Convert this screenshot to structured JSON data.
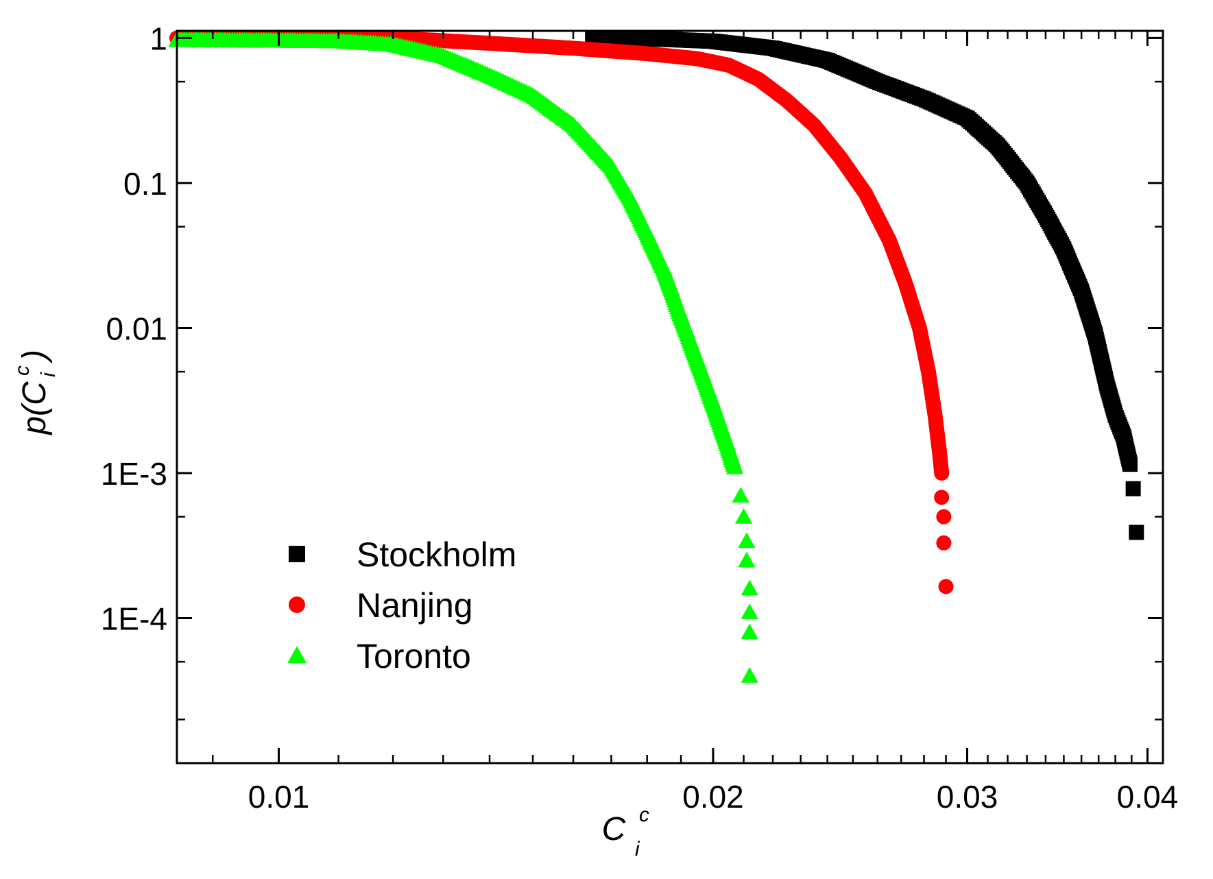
{
  "colors": {
    "background": "#ffffff",
    "axis": "#000000",
    "Stockholm": "#000000",
    "Nanjing": "#ff0000",
    "Toronto": "#00ff00"
  },
  "chart_data": {
    "type": "scatter",
    "xscale": "log",
    "yscale": "log",
    "xlim": [
      0.0085,
      0.041
    ],
    "ylim": [
      1e-05,
      1.12
    ],
    "xlabel": {
      "base": "C",
      "sup": "c",
      "sub": "i"
    },
    "ylabel": {
      "prefix": "p(",
      "base": "C",
      "sup": "c",
      "sub": "i",
      "suffix": ")"
    },
    "xticks": [
      {
        "value": 0.01,
        "label": "0.01"
      },
      {
        "value": 0.02,
        "label": "0.02"
      },
      {
        "value": 0.03,
        "label": "0.03"
      },
      {
        "value": 0.04,
        "label": "0.04"
      }
    ],
    "xminor": [
      0.009,
      0.011,
      0.012,
      0.013,
      0.014,
      0.015,
      0.016,
      0.017,
      0.018,
      0.019,
      0.021,
      0.022,
      0.023,
      0.024,
      0.025,
      0.026,
      0.027,
      0.028,
      0.029,
      0.031,
      0.032,
      0.033,
      0.034,
      0.035,
      0.036,
      0.037,
      0.038,
      0.039
    ],
    "yticks": [
      {
        "value": 1,
        "label": "1"
      },
      {
        "value": 0.1,
        "label": "0.1"
      },
      {
        "value": 0.01,
        "label": "0.01"
      },
      {
        "value": 0.001,
        "label": "1E-3"
      },
      {
        "value": 0.0001,
        "label": "1E-4"
      }
    ],
    "yminor": [
      0.5,
      0.05,
      0.005,
      0.0005,
      5e-05,
      2e-05
    ],
    "legend": {
      "position": "lower-left"
    },
    "series": [
      {
        "name": "Stockholm",
        "marker": "square",
        "color": "#000000",
        "points": [
          [
            0.0165,
            1.0
          ],
          [
            0.0185,
            0.98
          ],
          [
            0.02,
            0.95
          ],
          [
            0.022,
            0.85
          ],
          [
            0.024,
            0.7
          ],
          [
            0.026,
            0.5
          ],
          [
            0.028,
            0.38
          ],
          [
            0.03,
            0.28
          ],
          [
            0.0315,
            0.18
          ],
          [
            0.033,
            0.1
          ],
          [
            0.034,
            0.06
          ],
          [
            0.035,
            0.035
          ],
          [
            0.036,
            0.018
          ],
          [
            0.0368,
            0.009
          ],
          [
            0.0375,
            0.004
          ],
          [
            0.038,
            0.0025
          ],
          [
            0.0385,
            0.0018
          ],
          [
            0.0386,
            0.0016
          ],
          [
            0.0389,
            0.00115
          ],
          [
            0.0391,
            0.00078
          ],
          [
            0.0393,
            0.00039
          ]
        ]
      },
      {
        "name": "Nanjing",
        "marker": "circle",
        "color": "#ff0000",
        "points": [
          [
            0.0085,
            1.0
          ],
          [
            0.012,
            1.0
          ],
          [
            0.014,
            0.92
          ],
          [
            0.016,
            0.85
          ],
          [
            0.018,
            0.78
          ],
          [
            0.0195,
            0.72
          ],
          [
            0.0205,
            0.65
          ],
          [
            0.0215,
            0.52
          ],
          [
            0.0225,
            0.37
          ],
          [
            0.0235,
            0.25
          ],
          [
            0.0245,
            0.15
          ],
          [
            0.0255,
            0.085
          ],
          [
            0.0265,
            0.04
          ],
          [
            0.0272,
            0.02
          ],
          [
            0.0278,
            0.01
          ],
          [
            0.0282,
            0.005
          ],
          [
            0.0285,
            0.0025
          ],
          [
            0.0287,
            0.0014
          ],
          [
            0.0288,
            0.001
          ],
          [
            0.0288,
            0.00068
          ],
          [
            0.0289,
            0.0005
          ],
          [
            0.0289,
            0.00033
          ],
          [
            0.029,
            0.000165
          ]
        ]
      },
      {
        "name": "Toronto",
        "marker": "triangle",
        "color": "#00ff00",
        "points": [
          [
            0.0085,
            0.97
          ],
          [
            0.011,
            0.95
          ],
          [
            0.012,
            0.9
          ],
          [
            0.013,
            0.75
          ],
          [
            0.014,
            0.55
          ],
          [
            0.015,
            0.4
          ],
          [
            0.016,
            0.25
          ],
          [
            0.017,
            0.13
          ],
          [
            0.0175,
            0.08
          ],
          [
            0.018,
            0.045
          ],
          [
            0.0185,
            0.025
          ],
          [
            0.019,
            0.012
          ],
          [
            0.0195,
            0.006
          ],
          [
            0.02,
            0.003
          ],
          [
            0.0204,
            0.0017
          ],
          [
            0.0207,
            0.0011
          ],
          [
            0.0209,
            0.0007
          ],
          [
            0.021,
            0.0005
          ],
          [
            0.0211,
            0.00034
          ],
          [
            0.0211,
            0.00025
          ],
          [
            0.0212,
            0.00016
          ],
          [
            0.0212,
            0.00011
          ],
          [
            0.0212,
            8e-05
          ],
          [
            0.0212,
            4e-05
          ]
        ]
      }
    ]
  }
}
